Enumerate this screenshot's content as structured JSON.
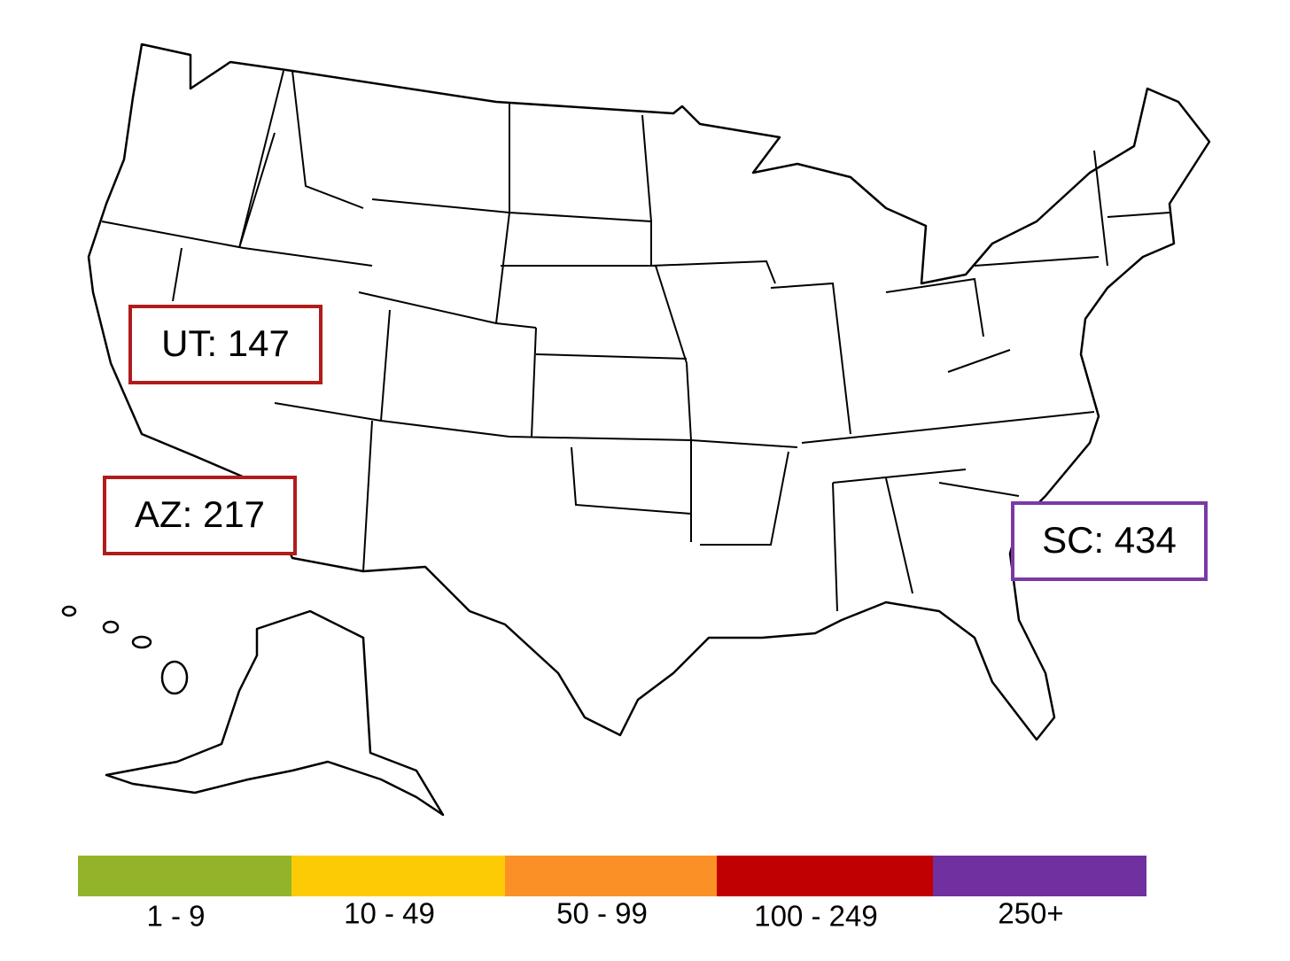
{
  "annotations": [
    {
      "label": "UT: 147",
      "color": "#b01c1c"
    },
    {
      "label": "AZ: 217",
      "color": "#b01c1c"
    },
    {
      "label": "SC: 434",
      "color": "#7a3aa5"
    }
  ],
  "legend": [
    {
      "label": "1 - 9",
      "color": "#93b42a"
    },
    {
      "label": "10 - 49",
      "color": "#fdcb05"
    },
    {
      "label": "50 - 99",
      "color": "#fb9126"
    },
    {
      "label": "100 - 249",
      "color": "#c00000"
    },
    {
      "label": "250+",
      "color": "#7030a0"
    }
  ]
}
